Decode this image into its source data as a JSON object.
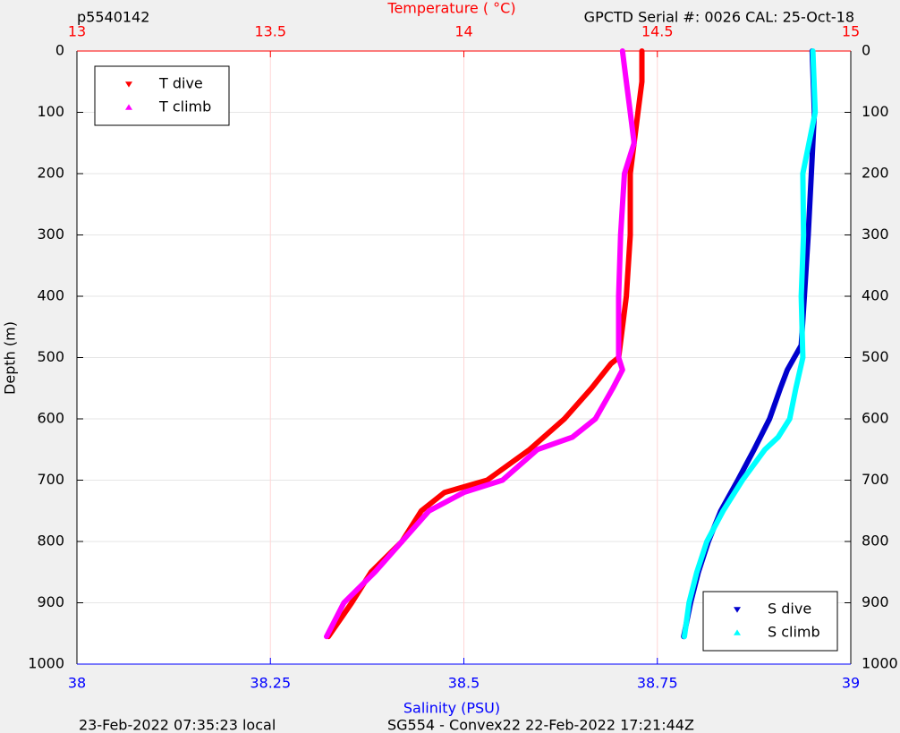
{
  "chart_data": {
    "type": "profile",
    "title_left": "p5540142",
    "title_right": "GPCTD Serial #: 0026 CAL: 25-Oct-18",
    "x2label": "Temperature (   °C)",
    "xlabel": "Salinity (PSU)",
    "ylabel": "Depth (m)",
    "footer_left": "23-Feb-2022 07:35:23 local",
    "footer_right": "SG554 - Convex22 22-Feb-2022 17:21:44Z",
    "xlim": [
      38,
      39
    ],
    "xticks": [
      38,
      38.25,
      38.5,
      38.75,
      39
    ],
    "x2lim": [
      13,
      15
    ],
    "x2ticks": [
      13,
      13.5,
      14,
      14.5,
      15
    ],
    "ylim": [
      0,
      1000
    ],
    "y_reversed": true,
    "yticks": [
      0,
      100,
      200,
      300,
      400,
      500,
      600,
      700,
      800,
      900,
      1000
    ],
    "grid": true,
    "legend": [
      "upper left",
      "lower right"
    ],
    "series": [
      {
        "name": "T dive",
        "color": "#ff0000",
        "axis": "x2",
        "marker": "down",
        "y": [
          0,
          50,
          100,
          150,
          200,
          300,
          400,
          500,
          510,
          550,
          600,
          650,
          700,
          720,
          750,
          800,
          850,
          900,
          955
        ],
        "x": [
          14.46,
          14.46,
          14.45,
          14.44,
          14.43,
          14.43,
          14.42,
          14.4,
          14.38,
          14.33,
          14.26,
          14.17,
          14.06,
          13.95,
          13.89,
          13.84,
          13.76,
          13.71,
          13.65
        ]
      },
      {
        "name": "T climb",
        "color": "#ff00ff",
        "axis": "x2",
        "marker": "up",
        "y": [
          0,
          50,
          100,
          150,
          200,
          300,
          400,
          500,
          520,
          550,
          600,
          630,
          650,
          700,
          720,
          750,
          800,
          850,
          900,
          955
        ],
        "x": [
          14.41,
          14.42,
          14.43,
          14.44,
          14.415,
          14.405,
          14.4,
          14.4,
          14.41,
          14.385,
          14.34,
          14.28,
          14.19,
          14.1,
          14.0,
          13.91,
          13.84,
          13.77,
          13.69,
          13.645
        ]
      },
      {
        "name": "S dive",
        "color": "#0000cd",
        "axis": "x",
        "marker": "down",
        "y": [
          0,
          100,
          200,
          300,
          400,
          480,
          520,
          550,
          600,
          650,
          700,
          750,
          800,
          850,
          900,
          955
        ],
        "x": [
          38.95,
          38.953,
          38.949,
          38.945,
          38.94,
          38.936,
          38.918,
          38.909,
          38.895,
          38.875,
          38.854,
          38.832,
          38.816,
          38.803,
          38.793,
          38.784
        ]
      },
      {
        "name": "S climb",
        "color": "#00ffff",
        "axis": "x",
        "marker": "up",
        "y": [
          0,
          100,
          150,
          200,
          300,
          400,
          500,
          550,
          600,
          630,
          650,
          700,
          750,
          800,
          850,
          900,
          955
        ],
        "x": [
          38.951,
          38.954,
          38.946,
          38.938,
          38.939,
          38.936,
          38.938,
          38.929,
          38.921,
          38.906,
          38.889,
          38.86,
          38.835,
          38.814,
          38.801,
          38.791,
          38.785
        ]
      }
    ]
  }
}
